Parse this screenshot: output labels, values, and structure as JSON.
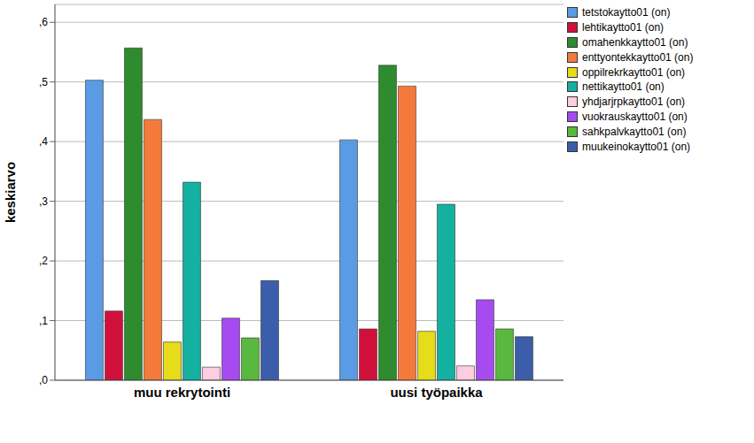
{
  "chart_data": {
    "type": "bar",
    "y_label": "keskiarvo",
    "categories": [
      "muu rekrytointi",
      "uusi työpaikka"
    ],
    "series": [
      {
        "name": "tetstokaytto01 (on)",
        "color": "#5b9be3",
        "values": [
          0.503,
          0.403
        ]
      },
      {
        "name": "lehtikaytto01 (on)",
        "color": "#d0103a",
        "values": [
          0.116,
          0.086
        ]
      },
      {
        "name": "omahenkkaytto01 (on)",
        "color": "#2e8b2e",
        "values": [
          0.557,
          0.528
        ]
      },
      {
        "name": "enttyontekkaytto01 (on)",
        "color": "#f47a3c",
        "values": [
          0.437,
          0.493
        ]
      },
      {
        "name": "oppilrekrkaytto01 (on)",
        "color": "#e6dc1a",
        "values": [
          0.064,
          0.082
        ]
      },
      {
        "name": "nettikaytto01 (on)",
        "color": "#14b0a0",
        "values": [
          0.332,
          0.295
        ]
      },
      {
        "name": "yhdjarjrpkaytto01 (on)",
        "color": "#ffcce0",
        "values": [
          0.022,
          0.024
        ]
      },
      {
        "name": "vuokrauskaytto01 (on)",
        "color": "#a64bf0",
        "values": [
          0.104,
          0.135
        ]
      },
      {
        "name": "sahkpalvkaytto01 (on)",
        "color": "#59b840",
        "values": [
          0.071,
          0.086
        ]
      },
      {
        "name": "muukeinokaytto01 (on)",
        "color": "#3c5daa",
        "values": [
          0.167,
          0.073
        ]
      }
    ],
    "ylim": [
      0,
      0.63
    ],
    "yticks": [
      {
        "value": 0,
        "label": ",0"
      },
      {
        "value": 0.1,
        "label": ",1"
      },
      {
        "value": 0.2,
        "label": ",2"
      },
      {
        "value": 0.3,
        "label": ",3"
      },
      {
        "value": 0.4,
        "label": ",4"
      },
      {
        "value": 0.5,
        "label": ",5"
      },
      {
        "value": 0.6,
        "label": ",6"
      }
    ],
    "grid": true,
    "legend": "right"
  }
}
